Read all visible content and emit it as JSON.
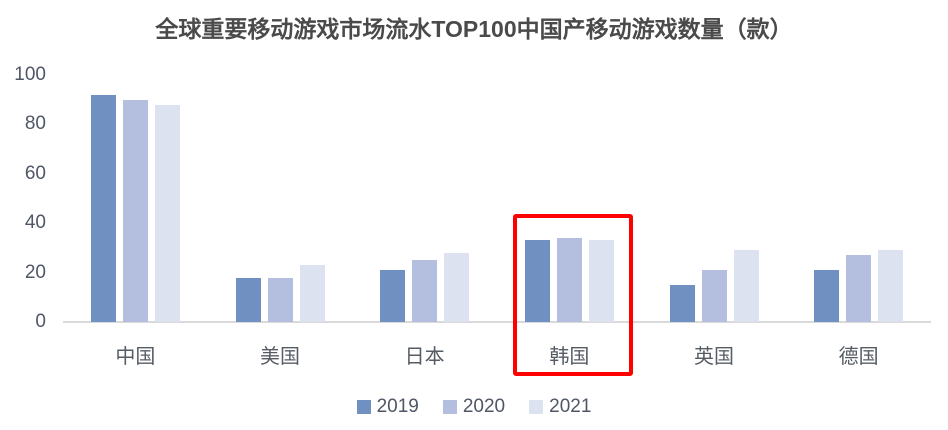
{
  "title": "全球重要移动游戏市场流水TOP100中国产移动游戏数量（款）",
  "chart_data": {
    "type": "bar",
    "title": "全球重要移动游戏市场流水TOP100中国产移动游戏数量（款）",
    "categories": [
      "中国",
      "美国",
      "日本",
      "韩国",
      "英国",
      "德国"
    ],
    "series": [
      {
        "name": "2019",
        "color": "#7190c2",
        "values": [
          92,
          18,
          21,
          33,
          15,
          21
        ]
      },
      {
        "name": "2020",
        "color": "#b4bedf",
        "values": [
          90,
          18,
          25,
          34,
          21,
          27
        ]
      },
      {
        "name": "2021",
        "color": "#dde2f1",
        "values": [
          88,
          23,
          28,
          33,
          29,
          29
        ]
      }
    ],
    "xlabel": "",
    "ylabel": "",
    "ylim": [
      0,
      100
    ],
    "yticks": [
      0,
      20,
      40,
      60,
      80,
      100
    ],
    "grid": false,
    "legend_position": "bottom",
    "annotation": {
      "type": "highlight-box",
      "category": "韩国",
      "color": "#ff0000"
    }
  },
  "colors": {
    "background": "#ffffff",
    "axis_line": "#d9d9d9",
    "title_text": "#4a4a4a",
    "tick_text": "#4f5666",
    "category_text": "#565c64",
    "highlight_red": "#ff0000"
  }
}
